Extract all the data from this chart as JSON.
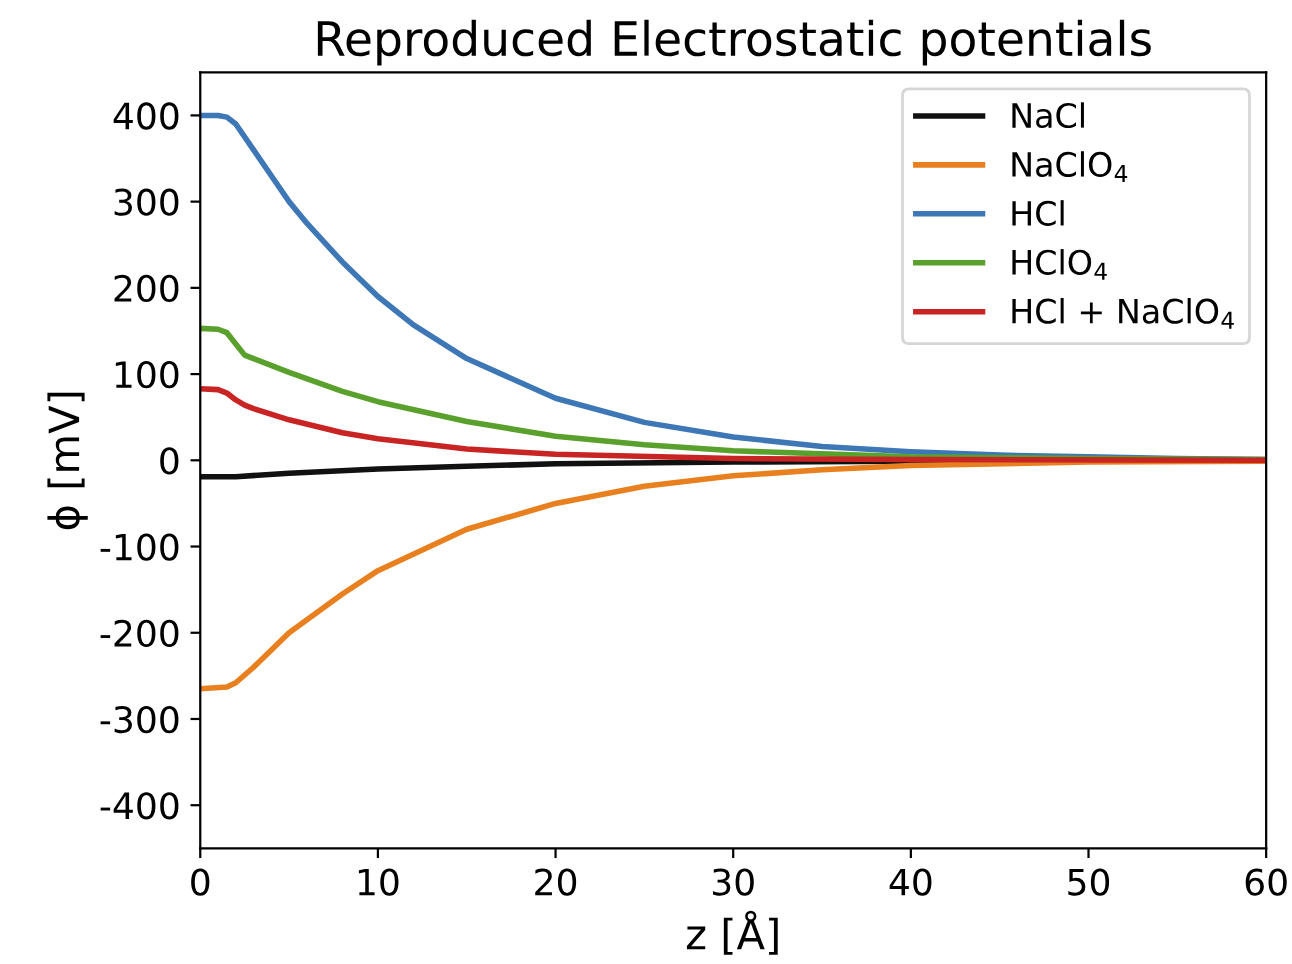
{
  "chart_data": {
    "type": "line",
    "title": "Reproduced Electrostatic potentials",
    "xlabel": "z [Å]",
    "ylabel": "ϕ [mV]",
    "xlim": [
      0,
      60
    ],
    "xticks": [
      0,
      10,
      20,
      30,
      40,
      50,
      60
    ],
    "ylim": [
      -450,
      450
    ],
    "yticks": [
      -400,
      -300,
      -200,
      -100,
      0,
      100,
      200,
      300,
      400
    ],
    "grid": false,
    "legend": "top right",
    "marker": "none",
    "line_style": "solid",
    "series": [
      {
        "name": "NaCl",
        "color": "#111111",
        "x": [
          0,
          2,
          5,
          10,
          15,
          20,
          30,
          40,
          60
        ],
        "values": [
          -19,
          -19,
          -15,
          -10,
          -7,
          -4,
          -2,
          -1,
          0
        ]
      },
      {
        "name": "NaClO$_{4}$",
        "color": "#e8801f",
        "x": [
          0,
          1.5,
          2,
          3,
          5,
          8,
          10,
          15,
          20,
          25,
          30,
          35,
          40,
          50,
          60
        ],
        "values": [
          -265,
          -263,
          -258,
          -240,
          -200,
          -155,
          -128,
          -80,
          -50,
          -30,
          -18,
          -11,
          -6,
          -2,
          -1
        ]
      },
      {
        "name": "HCl",
        "color": "#3e77b6",
        "x": [
          0,
          1,
          1.5,
          2,
          3,
          4,
          5,
          6,
          8,
          10,
          12,
          15,
          20,
          25,
          30,
          35,
          40,
          45,
          50,
          55,
          60
        ],
        "values": [
          400,
          400,
          398,
          390,
          360,
          330,
          300,
          275,
          230,
          190,
          157,
          118,
          72,
          44,
          27,
          16,
          10,
          6,
          4,
          2,
          1
        ]
      },
      {
        "name": "HClO$_{4}$",
        "color": "#5aa02c",
        "x": [
          0,
          1,
          1.5,
          2,
          2.5,
          3,
          5,
          8,
          10,
          15,
          20,
          25,
          30,
          40,
          50,
          60
        ],
        "values": [
          153,
          152,
          148,
          135,
          122,
          118,
          102,
          80,
          68,
          45,
          28,
          18,
          11,
          4,
          2,
          1
        ]
      },
      {
        "name": "HCl + NaClO$_{4}$",
        "color": "#c82423",
        "x": [
          0,
          1,
          1.5,
          2,
          2.5,
          3,
          5,
          8,
          10,
          15,
          20,
          30,
          40,
          60
        ],
        "values": [
          83,
          82,
          78,
          70,
          64,
          60,
          47,
          32,
          25,
          13,
          7,
          2,
          1,
          0
        ]
      }
    ]
  }
}
